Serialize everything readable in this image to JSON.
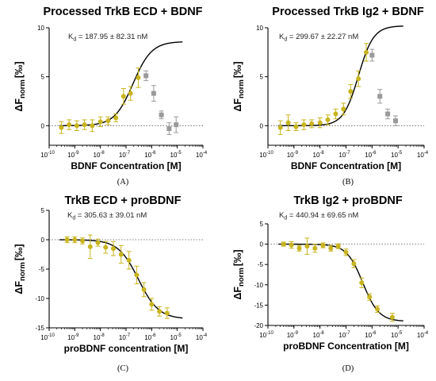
{
  "colors": {
    "included": "#c8b41e",
    "excluded": "#9a9a9a",
    "fit": "#000000",
    "baseline": "#555555"
  },
  "chart_data": [
    {
      "type": "scatter",
      "panel_label": "(A)",
      "title": "Processed TrkB ECD + BDNF",
      "kd_text": "K",
      "kd_sub": "d",
      "kd_value": " = 187.95 ± 82.31 nM",
      "xlabel": "BDNF Concentration [M]",
      "ylabel_main": "ΔF",
      "ylabel_sub": "norm",
      "ylabel_unit": "[‰]",
      "x_scale": "log",
      "xlim_exp": [
        -10,
        -4
      ],
      "ylim": [
        -2,
        10
      ],
      "xticks_exp": [
        -10,
        -9,
        -8,
        -7,
        -6,
        -5,
        -4
      ],
      "yticks": [
        0,
        5,
        10
      ],
      "fit": {
        "kd_nM": 187.95,
        "bottom": 0,
        "top": 8.6,
        "hill": 1.2
      },
      "points_included": [
        {
          "x": 3e-10,
          "y": -0.2,
          "err": 0.6
        },
        {
          "x": 6e-10,
          "y": 0.1,
          "err": 0.5
        },
        {
          "x": 1.2e-09,
          "y": 0.0,
          "err": 0.5
        },
        {
          "x": 2.4e-09,
          "y": 0.1,
          "err": 0.5
        },
        {
          "x": 4.8e-09,
          "y": 0.0,
          "err": 0.6
        },
        {
          "x": 1e-08,
          "y": 0.4,
          "err": 0.5
        },
        {
          "x": 2e-08,
          "y": 0.5,
          "err": 0.4
        },
        {
          "x": 4e-08,
          "y": 0.8,
          "err": 0.4
        },
        {
          "x": 8e-08,
          "y": 3.0,
          "err": 0.8
        },
        {
          "x": 1.5e-07,
          "y": 3.3,
          "err": 0.7
        },
        {
          "x": 3e-07,
          "y": 4.9,
          "err": 1.0
        }
      ],
      "points_excluded": [
        {
          "x": 6e-07,
          "y": 5.1,
          "err": 0.5
        },
        {
          "x": 1.2e-06,
          "y": 3.3,
          "err": 0.8
        },
        {
          "x": 2.4e-06,
          "y": 1.1,
          "err": 0.4
        },
        {
          "x": 4.8e-06,
          "y": -0.3,
          "err": 0.6
        },
        {
          "x": 9e-06,
          "y": 0.1,
          "err": 0.8
        }
      ]
    },
    {
      "type": "scatter",
      "panel_label": "(B)",
      "title": "Processed TrkB Ig2 + BDNF",
      "kd_text": "K",
      "kd_sub": "d",
      "kd_value": " = 299.67 ± 22.27 nM",
      "xlabel": "BDNF Concentration [M]",
      "ylabel_main": "ΔF",
      "ylabel_sub": "norm",
      "ylabel_unit": "[‰]",
      "x_scale": "log",
      "xlim_exp": [
        -10,
        -4
      ],
      "ylim": [
        -2,
        10
      ],
      "xticks_exp": [
        -10,
        -9,
        -8,
        -7,
        -6,
        -5,
        -4
      ],
      "yticks": [
        0,
        5,
        10
      ],
      "fit": {
        "kd_nM": 299.67,
        "bottom": 0,
        "top": 10.2,
        "hill": 1.5
      },
      "points_included": [
        {
          "x": 3e-10,
          "y": -0.2,
          "err": 0.7
        },
        {
          "x": 6e-10,
          "y": 0.3,
          "err": 0.8
        },
        {
          "x": 1.2e-09,
          "y": -0.1,
          "err": 0.4
        },
        {
          "x": 2.4e-09,
          "y": 0.1,
          "err": 0.5
        },
        {
          "x": 4.8e-09,
          "y": 0.2,
          "err": 0.4
        },
        {
          "x": 1e-08,
          "y": 0.3,
          "err": 0.5
        },
        {
          "x": 2e-08,
          "y": 0.6,
          "err": 0.5
        },
        {
          "x": 4e-08,
          "y": 1.2,
          "err": 0.5
        },
        {
          "x": 8e-08,
          "y": 1.7,
          "err": 0.6
        },
        {
          "x": 1.5e-07,
          "y": 3.5,
          "err": 0.7
        },
        {
          "x": 3e-07,
          "y": 4.8,
          "err": 0.8
        },
        {
          "x": 6e-07,
          "y": 7.5,
          "err": 0.9
        }
      ],
      "points_excluded": [
        {
          "x": 1e-06,
          "y": 7.2,
          "err": 0.6
        },
        {
          "x": 2e-06,
          "y": 3.0,
          "err": 0.7
        },
        {
          "x": 4e-06,
          "y": 1.2,
          "err": 0.5
        },
        {
          "x": 8e-06,
          "y": 0.5,
          "err": 0.5
        }
      ]
    },
    {
      "type": "scatter",
      "panel_label": "(C)",
      "title": "TrkB ECD + proBDNF",
      "kd_text": "K",
      "kd_sub": "d",
      "kd_value": " = 305.63 ± 39.01 nM",
      "xlabel": "proBDNF concentration [M]",
      "ylabel_main": "ΔF",
      "ylabel_sub": "norm",
      "ylabel_unit": "[‰]",
      "x_scale": "log",
      "xlim_exp": [
        -10,
        -4
      ],
      "ylim": [
        -15,
        5
      ],
      "xticks_exp": [
        -10,
        -9,
        -8,
        -7,
        -6,
        -5,
        -4
      ],
      "yticks": [
        -15,
        -10,
        -5,
        0,
        5
      ],
      "fit": {
        "kd_nM": 305.63,
        "bottom": 0,
        "top": -13.5,
        "hill": 1.1
      },
      "points_included": [
        {
          "x": 5e-10,
          "y": 0.0,
          "err": 0.5
        },
        {
          "x": 1e-09,
          "y": 0.0,
          "err": 0.5
        },
        {
          "x": 2e-09,
          "y": -0.2,
          "err": 0.5
        },
        {
          "x": 4e-09,
          "y": -1.2,
          "err": 2.0
        },
        {
          "x": 8e-09,
          "y": -0.5,
          "err": 0.6
        },
        {
          "x": 1.6e-08,
          "y": -1.3,
          "err": 1.0
        },
        {
          "x": 3.2e-08,
          "y": -1.5,
          "err": 1.2
        },
        {
          "x": 6.4e-08,
          "y": -2.5,
          "err": 1.5
        },
        {
          "x": 1.3e-07,
          "y": -3.5,
          "err": 1.5
        },
        {
          "x": 2.6e-07,
          "y": -6.0,
          "err": 1.5
        },
        {
          "x": 5e-07,
          "y": -8.5,
          "err": 1.2
        },
        {
          "x": 1e-06,
          "y": -11.0,
          "err": 1.0
        },
        {
          "x": 2e-06,
          "y": -12.2,
          "err": 0.8
        },
        {
          "x": 4e-06,
          "y": -12.5,
          "err": 0.9
        }
      ],
      "points_excluded": []
    },
    {
      "type": "scatter",
      "panel_label": "(D)",
      "title": "TrkB Ig2 + proBDNF",
      "kd_text": "K",
      "kd_sub": "d",
      "kd_value": " = 440.94 ± 69.65 nM",
      "xlabel": "proBDNF Concentration [M]",
      "ylabel_main": "ΔF",
      "ylabel_sub": "norm",
      "ylabel_unit": "[‰]",
      "x_scale": "log",
      "xlim_exp": [
        -10,
        -4
      ],
      "ylim": [
        -20,
        5
      ],
      "xticks_exp": [
        -10,
        -9,
        -8,
        -7,
        -6,
        -5,
        -4
      ],
      "yticks": [
        -20,
        -15,
        -10,
        -5,
        0,
        5
      ],
      "fit": {
        "kd_nM": 440.94,
        "bottom": 0,
        "top": -19.0,
        "hill": 1.4
      },
      "points_included": [
        {
          "x": 4e-10,
          "y": 0.0,
          "err": 0.5
        },
        {
          "x": 8e-10,
          "y": -0.2,
          "err": 0.8
        },
        {
          "x": 1.6e-09,
          "y": -1.0,
          "err": 0.7
        },
        {
          "x": 3.2e-09,
          "y": -0.5,
          "err": 2.0
        },
        {
          "x": 6.4e-09,
          "y": -1.0,
          "err": 1.0
        },
        {
          "x": 1.3e-08,
          "y": -0.3,
          "err": 0.6
        },
        {
          "x": 2.6e-08,
          "y": -1.0,
          "err": 0.7
        },
        {
          "x": 5e-08,
          "y": -0.5,
          "err": 0.6
        },
        {
          "x": 1e-07,
          "y": -2.0,
          "err": 0.8
        },
        {
          "x": 2e-07,
          "y": -4.8,
          "err": 1.0
        },
        {
          "x": 4e-07,
          "y": -9.5,
          "err": 1.2
        },
        {
          "x": 8e-07,
          "y": -13.0,
          "err": 0.8
        },
        {
          "x": 1.6e-06,
          "y": -16.0,
          "err": 0.8
        },
        {
          "x": 6e-06,
          "y": -18.0,
          "err": 1.0
        }
      ],
      "points_excluded": []
    }
  ]
}
